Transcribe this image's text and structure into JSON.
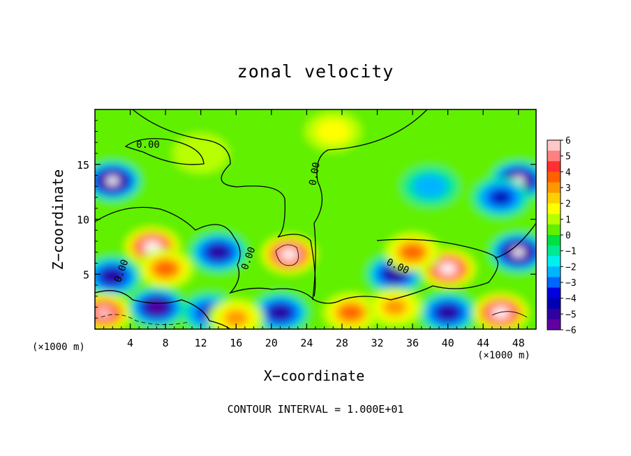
{
  "chart_data": {
    "type": "heatmap",
    "title": "zonal velocity",
    "xlabel": "X−coordinate",
    "ylabel": "Z−coordinate",
    "x_unit_left": "(×1000 m)",
    "x_unit_right": "(×1000 m)",
    "footer": "CONTOUR INTERVAL = 1.000E+01",
    "xlim": [
      0,
      50
    ],
    "ylim": [
      0,
      20
    ],
    "x_ticks": [
      4,
      8,
      12,
      16,
      20,
      24,
      28,
      32,
      36,
      40,
      44,
      48
    ],
    "y_ticks": [
      5,
      10,
      15
    ],
    "colorbar": {
      "min": -6,
      "max": 6,
      "labels": [
        6,
        5,
        4,
        3,
        2,
        1,
        0,
        -1,
        -2,
        -3,
        -4,
        -5,
        -6
      ],
      "colors": [
        "#ffc8c8",
        "#ff8080",
        "#ff3030",
        "#ff6000",
        "#ff9800",
        "#ffd000",
        "#ffff00",
        "#b8ff00",
        "#60f000",
        "#00e040",
        "#00e890",
        "#00f0f0",
        "#00b4ff",
        "#0064ff",
        "#0000e0",
        "#0000b0",
        "#3000a0",
        "#6000a0"
      ]
    },
    "contour_labels": [
      "0.00",
      "0.00",
      "0.00",
      "0.00",
      "0.00"
    ],
    "features": [
      {
        "x": 2,
        "z": 13.5,
        "value": -7
      },
      {
        "x": 6.5,
        "z": 7.5,
        "value": 7
      },
      {
        "x": 8,
        "z": 5.5,
        "value": 4
      },
      {
        "x": 14,
        "z": 7,
        "value": -5
      },
      {
        "x": 22,
        "z": 6.8,
        "value": 7
      },
      {
        "x": 34,
        "z": 5,
        "value": -5
      },
      {
        "x": 40,
        "z": 5.5,
        "value": 7
      },
      {
        "x": 36,
        "z": 7,
        "value": 4
      },
      {
        "x": 48,
        "z": 13.5,
        "value": -7
      },
      {
        "x": 46,
        "z": 12,
        "value": -4
      },
      {
        "x": 48,
        "z": 7,
        "value": -7
      },
      {
        "x": 2,
        "z": 4.8,
        "value": -5
      },
      {
        "x": 40,
        "z": 1.5,
        "value": -5
      },
      {
        "x": 21,
        "z": 1.5,
        "value": -5
      },
      {
        "x": 13,
        "z": 1.5,
        "value": -4
      },
      {
        "x": 46,
        "z": 1.5,
        "value": 7
      },
      {
        "x": 1,
        "z": 1.5,
        "value": 6
      },
      {
        "x": 7,
        "z": 2,
        "value": -6
      },
      {
        "x": 16,
        "z": 1,
        "value": 3
      },
      {
        "x": 29,
        "z": 1.5,
        "value": 4
      },
      {
        "x": 34,
        "z": 2,
        "value": 3
      },
      {
        "x": 12,
        "z": 16,
        "value": 0.5
      },
      {
        "x": 27,
        "z": 18,
        "value": 1.5
      },
      {
        "x": 38,
        "z": 13,
        "value": -1.5
      }
    ]
  }
}
